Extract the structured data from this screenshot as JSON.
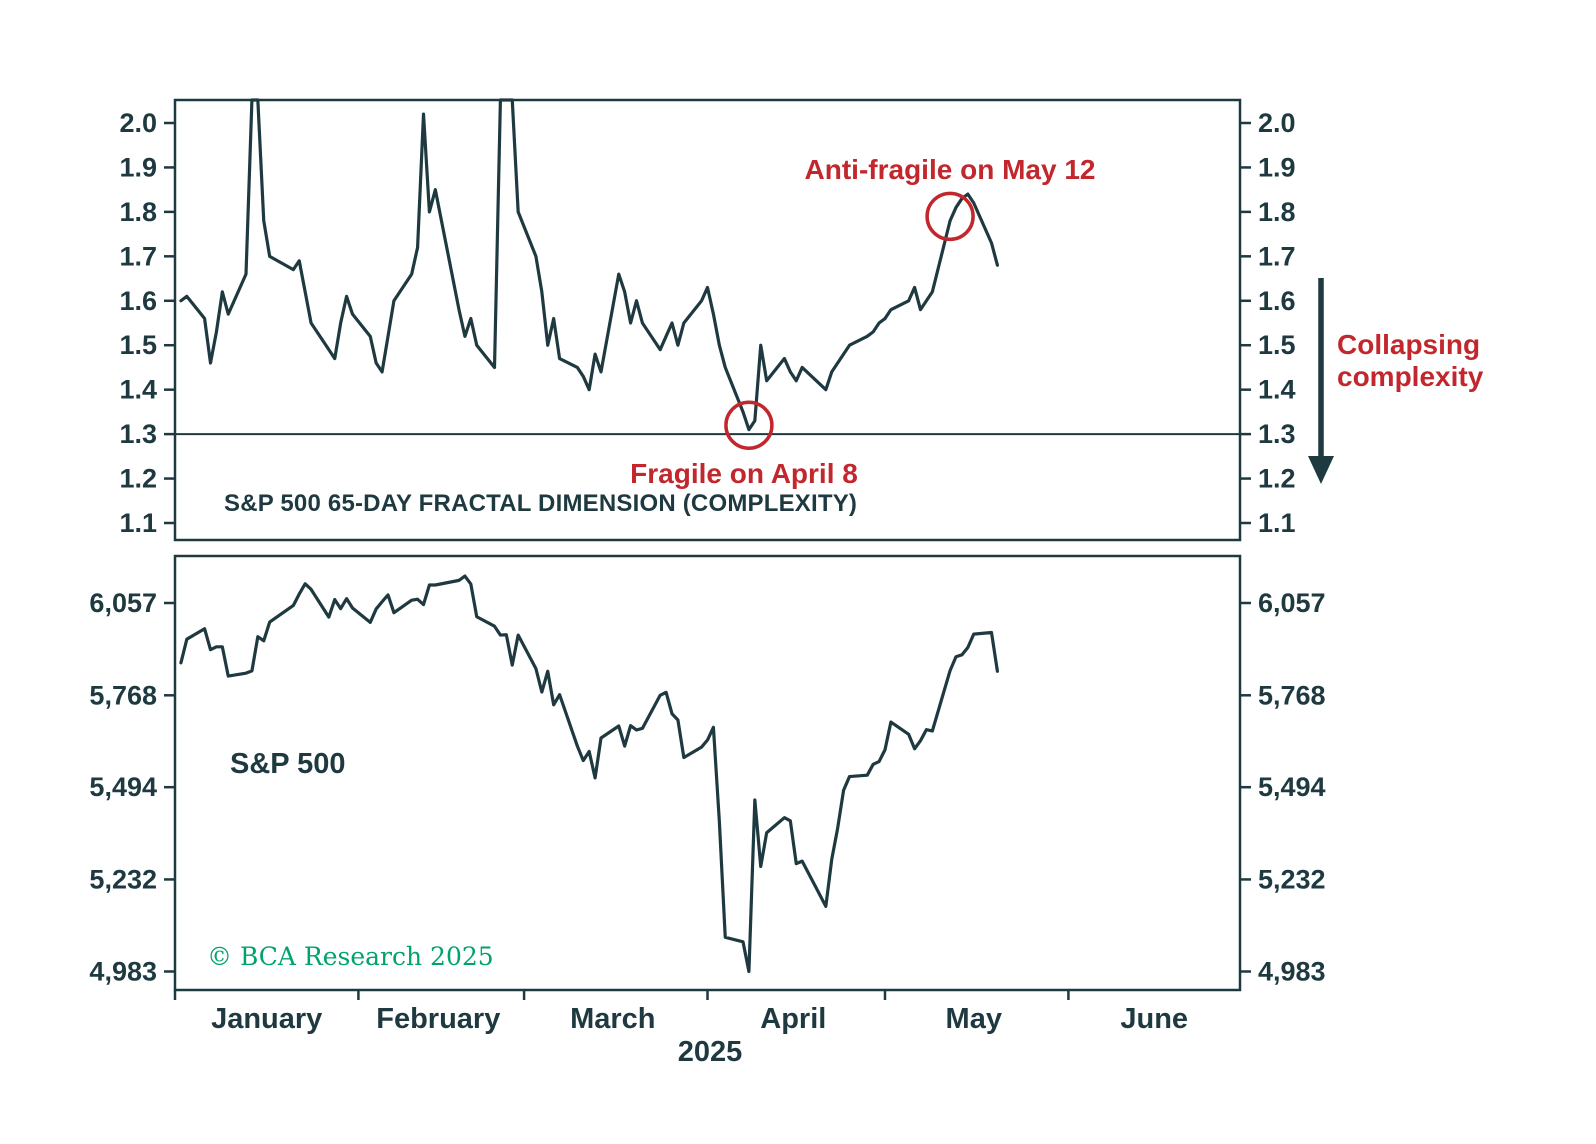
{
  "annotations": {
    "antifragile": "Anti-fragile on May 12",
    "fragile": "Fragile on April 8",
    "collapsing": "Collapsing\ncomplexity",
    "copyright": "© BCA Research 2025"
  },
  "colors": {
    "line": "#1e3a40",
    "annotation_red": "#c1272d",
    "copyright_green": "#00a46a",
    "background": "#ffffff"
  },
  "xaxis": {
    "months": [
      "January",
      "February",
      "March",
      "April",
      "May",
      "June"
    ],
    "year": "2025",
    "day_domain": [
      1,
      181
    ],
    "month_start_days": [
      1,
      32,
      60,
      91,
      121,
      152
    ],
    "month_center_days": [
      16.5,
      45.5,
      75,
      105.5,
      136,
      166.5
    ]
  },
  "chart_data": [
    {
      "type": "line",
      "title": "S&P 500 65-DAY FRACTAL DIMENSION (COMPLEXITY)",
      "ylim": [
        1.06,
        2.05
      ],
      "yticks": [
        2.0,
        1.9,
        1.8,
        1.7,
        1.6,
        1.5,
        1.4,
        1.3,
        1.2,
        1.1
      ],
      "ytick_labels": [
        "2.0",
        "1.9",
        "1.8",
        "1.7",
        "1.6",
        "1.5",
        "1.4",
        "1.3",
        "1.2",
        "1.1"
      ],
      "reference_line": 1.3,
      "clipped_at_top": true,
      "markers": [
        {
          "id": "fragile",
          "label": "Fragile on April 8",
          "day": 98,
          "value": 1.32
        },
        {
          "id": "antifragile",
          "label": "Anti-fragile on May 12",
          "day": 132,
          "value": 1.79
        }
      ],
      "x_day_of_year": [
        2,
        3,
        6,
        7,
        8,
        9,
        10,
        13,
        14,
        15,
        16,
        17,
        21,
        22,
        23,
        24,
        27,
        28,
        29,
        30,
        31,
        34,
        35,
        36,
        37,
        38,
        41,
        42,
        43,
        44,
        45,
        49,
        50,
        51,
        52,
        55,
        56,
        57,
        58,
        59,
        62,
        63,
        64,
        65,
        66,
        69,
        70,
        71,
        72,
        73,
        76,
        77,
        78,
        79,
        80,
        83,
        84,
        85,
        86,
        87,
        90,
        91,
        92,
        93,
        94,
        97,
        98,
        99,
        100,
        101,
        104,
        105,
        106,
        107,
        111,
        112,
        113,
        114,
        115,
        118,
        119,
        120,
        121,
        122,
        125,
        126,
        127,
        128,
        129,
        132,
        133,
        134,
        135,
        136,
        139,
        140
      ],
      "values": [
        1.6,
        1.61,
        1.56,
        1.46,
        1.53,
        1.62,
        1.57,
        1.66,
        2.1,
        2.28,
        1.78,
        1.7,
        1.67,
        1.69,
        1.62,
        1.55,
        1.49,
        1.47,
        1.55,
        1.61,
        1.57,
        1.52,
        1.46,
        1.44,
        1.52,
        1.6,
        1.66,
        1.72,
        2.02,
        1.8,
        1.85,
        1.58,
        1.52,
        1.56,
        1.5,
        1.45,
        2.15,
        2.3,
        2.18,
        1.8,
        1.7,
        1.62,
        1.5,
        1.56,
        1.47,
        1.45,
        1.43,
        1.4,
        1.48,
        1.44,
        1.66,
        1.62,
        1.55,
        1.6,
        1.55,
        1.49,
        1.52,
        1.55,
        1.5,
        1.55,
        1.6,
        1.63,
        1.57,
        1.5,
        1.45,
        1.35,
        1.31,
        1.33,
        1.5,
        1.42,
        1.47,
        1.44,
        1.42,
        1.45,
        1.4,
        1.44,
        1.46,
        1.48,
        1.5,
        1.52,
        1.53,
        1.55,
        1.56,
        1.58,
        1.6,
        1.63,
        1.58,
        1.6,
        1.62,
        1.78,
        1.81,
        1.83,
        1.84,
        1.82,
        1.73,
        1.68
      ]
    },
    {
      "type": "line",
      "title": "S&P 500",
      "scale": "log",
      "ylim": [
        4935,
        6210
      ],
      "yticks": [
        6057,
        5768,
        5494,
        5232,
        4983
      ],
      "ytick_labels": [
        "6,057",
        "5,768",
        "5,494",
        "5,232",
        "4,983"
      ],
      "x_day_of_year": [
        2,
        3,
        6,
        7,
        8,
        9,
        10,
        13,
        14,
        15,
        16,
        17,
        21,
        22,
        23,
        24,
        27,
        28,
        29,
        30,
        31,
        34,
        35,
        36,
        37,
        38,
        41,
        42,
        43,
        44,
        45,
        49,
        50,
        51,
        52,
        55,
        56,
        57,
        58,
        59,
        62,
        63,
        64,
        65,
        66,
        69,
        70,
        71,
        72,
        73,
        76,
        77,
        78,
        79,
        80,
        83,
        84,
        85,
        86,
        87,
        90,
        91,
        92,
        93,
        94,
        97,
        98,
        99,
        100,
        101,
        104,
        105,
        106,
        107,
        111,
        112,
        113,
        114,
        115,
        118,
        119,
        120,
        121,
        122,
        125,
        126,
        127,
        128,
        129,
        132,
        133,
        134,
        135,
        136,
        139,
        140
      ],
      "values": [
        5868,
        5942,
        5975,
        5909,
        5918,
        5918,
        5827,
        5836,
        5843,
        5950,
        5937,
        5996,
        6049,
        6086,
        6119,
        6101,
        6012,
        6068,
        6039,
        6071,
        6041,
        5995,
        6038,
        6061,
        6083,
        6026,
        6066,
        6069,
        6052,
        6115,
        6115,
        6130,
        6144,
        6118,
        6013,
        5983,
        5955,
        5956,
        5861,
        5955,
        5850,
        5778,
        5842,
        5739,
        5770,
        5615,
        5572,
        5599,
        5521,
        5639,
        5675,
        5615,
        5676,
        5663,
        5668,
        5768,
        5777,
        5712,
        5693,
        5581,
        5612,
        5633,
        5671,
        5396,
        5074,
        5062,
        4983,
        5457,
        5268,
        5363,
        5406,
        5397,
        5276,
        5283,
        5158,
        5288,
        5376,
        5485,
        5525,
        5529,
        5561,
        5569,
        5604,
        5687,
        5650,
        5607,
        5631,
        5664,
        5660,
        5844,
        5887,
        5893,
        5916,
        5958,
        5963,
        5842
      ]
    }
  ]
}
